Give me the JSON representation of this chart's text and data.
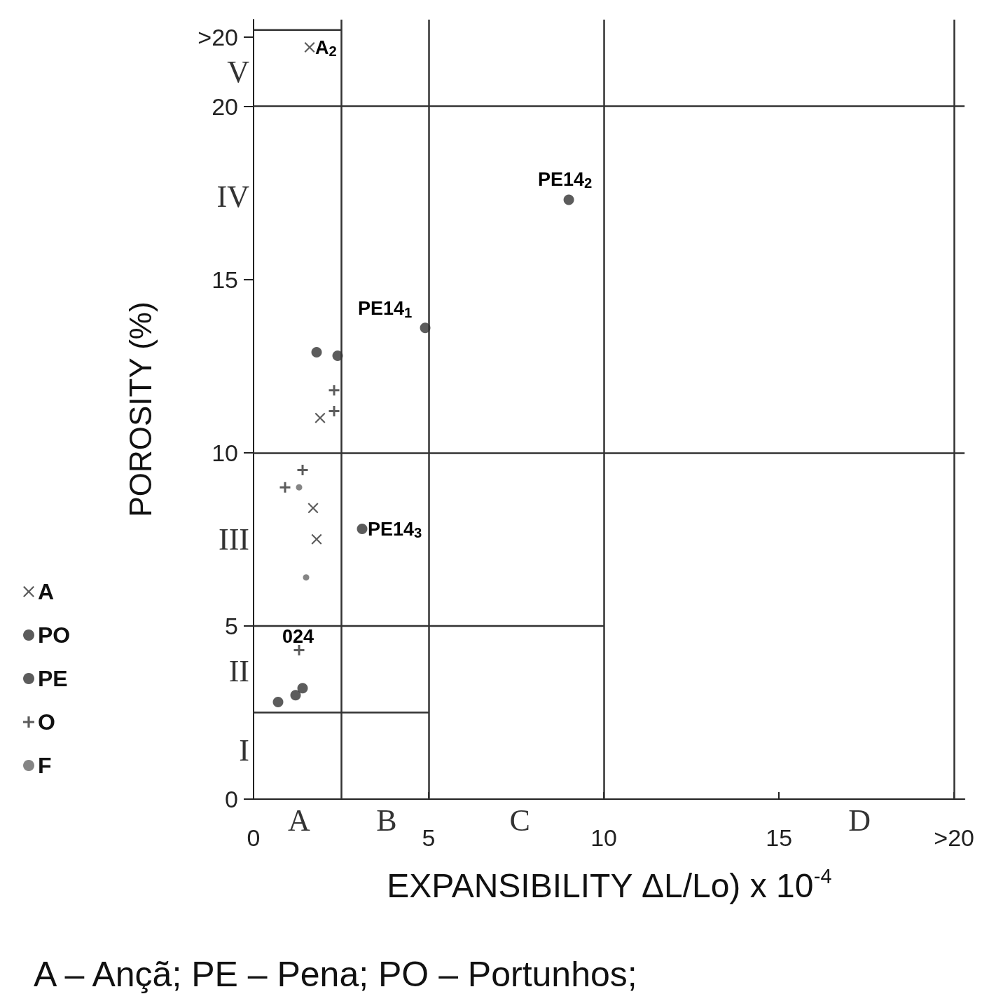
{
  "chart_data": {
    "type": "scatter",
    "xlabel": "EXPANSIBILITY ΔL/Lo) x 10$^{-4}$",
    "ylabel": "POROSITY (%)",
    "xlim": [
      0,
      20.3
    ],
    "xticks": [
      0,
      5,
      10,
      15,
      {
        "value": 20,
        "label": ">20"
      }
    ],
    "ylim": [
      0,
      22.5
    ],
    "yticks": [
      0,
      5,
      10,
      15,
      20,
      {
        "value": 22,
        "label": ">20"
      }
    ],
    "legend": "left",
    "series": [
      {
        "name": "A",
        "color": "#333333",
        "marker": "x",
        "x": [
          1.6,
          1.9,
          1.7,
          1.8
        ],
        "values": [
          21.7,
          11.0,
          8.4,
          7.5
        ]
      },
      {
        "name": "PO",
        "color": "#333333",
        "marker": "circle",
        "x": [
          1.8,
          2.4,
          0.7,
          1.2,
          1.4
        ],
        "values": [
          12.9,
          12.8,
          2.8,
          3.0,
          3.2
        ]
      },
      {
        "name": "PE",
        "color": "#333333",
        "marker": "circle",
        "x": [
          4.9,
          9.0,
          3.1
        ],
        "values": [
          13.6,
          17.3,
          7.8
        ]
      },
      {
        "name": "O",
        "color": "#333333",
        "marker": "cross",
        "x": [
          2.3,
          2.3,
          1.4,
          0.9,
          1.3
        ],
        "values": [
          11.8,
          11.2,
          9.5,
          9.0,
          4.3
        ]
      },
      {
        "name": "F",
        "color": "#666666",
        "marker": "circle",
        "x": [
          1.3,
          1.5
        ],
        "values": [
          9.0,
          6.4
        ]
      },
      {
        "type": "line",
        "color": "#333333",
        "marker": "none",
        "line_style": "solid",
        "x": [
          0,
          10
        ],
        "values": [
          5,
          5
        ]
      },
      {
        "type": "line",
        "color": "#333333",
        "marker": "none",
        "line_style": "solid",
        "x": [
          0,
          5
        ],
        "values": [
          2.5,
          2.5
        ]
      },
      {
        "type": "line",
        "color": "#333333",
        "marker": "none",
        "line_style": "solid",
        "x": [
          0,
          2.5
        ],
        "values": [
          22.2,
          22.2
        ]
      }
    ],
    "ref_lines": [
      {
        "axis": "y",
        "value": 10,
        "color": "#333333"
      },
      {
        "axis": "y",
        "value": 20,
        "color": "#333333"
      },
      {
        "axis": "x",
        "value": 2.5,
        "color": "#333333"
      },
      {
        "axis": "x",
        "value": 5,
        "color": "#333333"
      },
      {
        "axis": "x",
        "value": 10,
        "color": "#333333"
      },
      {
        "axis": "x",
        "value": 20,
        "color": "#333333"
      }
    ],
    "annotations": [
      {
        "text": "A$_{2}$",
        "x": 1.6,
        "y": 21.7
      },
      {
        "text": "PE14$_{1}$",
        "x": 4.9,
        "y": 13.6
      },
      {
        "text": "PE14$_{2}$",
        "x": 9.0,
        "y": 17.3
      },
      {
        "text": "PE14$_{3}$",
        "x": 3.1,
        "y": 7.8
      },
      {
        "text": "024",
        "x": 1.3,
        "y": 4.3
      },
      "I",
      "II",
      "III",
      "IV",
      "V",
      "A",
      "B",
      "C",
      "D",
      "A – Ançã; PE – Pena; PO – Portunhos;"
    ]
  }
}
